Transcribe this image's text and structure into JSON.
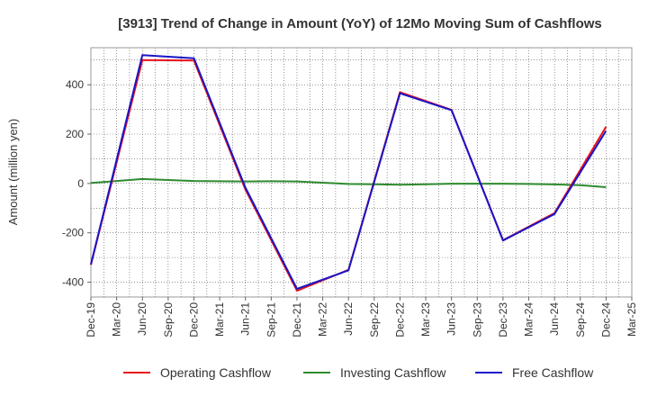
{
  "chart_data": {
    "type": "line",
    "title": "[3913]  Trend of Change in Amount (YoY) of 12Mo Moving Sum of Cashflows",
    "xlabel": "",
    "ylabel": "Amount (million yen)",
    "categories": [
      "Dec-19",
      "Mar-20",
      "Jun-20",
      "Sep-20",
      "Dec-20",
      "Mar-21",
      "Jun-21",
      "Sep-21",
      "Dec-21",
      "Mar-22",
      "Jun-22",
      "Sep-22",
      "Dec-22",
      "Mar-23",
      "Jun-23",
      "Sep-23",
      "Dec-23",
      "Mar-24",
      "Jun-24",
      "Sep-24",
      "Dec-24",
      "Mar-25"
    ],
    "ylim": [
      -460,
      550
    ],
    "yticks": [
      -400,
      -200,
      0,
      200,
      400
    ],
    "ytick_labels": [
      "-400",
      "-200",
      "0",
      "200",
      "400"
    ],
    "grid": true,
    "legend_position": "bottom",
    "series": [
      {
        "name": "Operating Cashflow",
        "color": "#e8141e",
        "values": [
          -330,
          null,
          500,
          null,
          498,
          null,
          -25,
          null,
          -435,
          null,
          -350,
          null,
          370,
          null,
          298,
          null,
          -230,
          null,
          -120,
          null,
          230,
          null
        ]
      },
      {
        "name": "Investing Cashflow",
        "color": "#2e8b2e",
        "values": [
          2,
          10,
          18,
          14,
          10,
          9,
          8,
          9,
          8,
          3,
          -2,
          -3,
          -5,
          -3,
          -1,
          -1,
          -1,
          -2,
          -4,
          -7,
          -15,
          null
        ]
      },
      {
        "name": "Free Cashflow",
        "color": "#1a14c8",
        "values": [
          -328,
          null,
          520,
          null,
          507,
          null,
          -17,
          null,
          -427,
          null,
          -352,
          null,
          365,
          null,
          297,
          null,
          -231,
          null,
          -124,
          null,
          213,
          null
        ]
      }
    ]
  }
}
